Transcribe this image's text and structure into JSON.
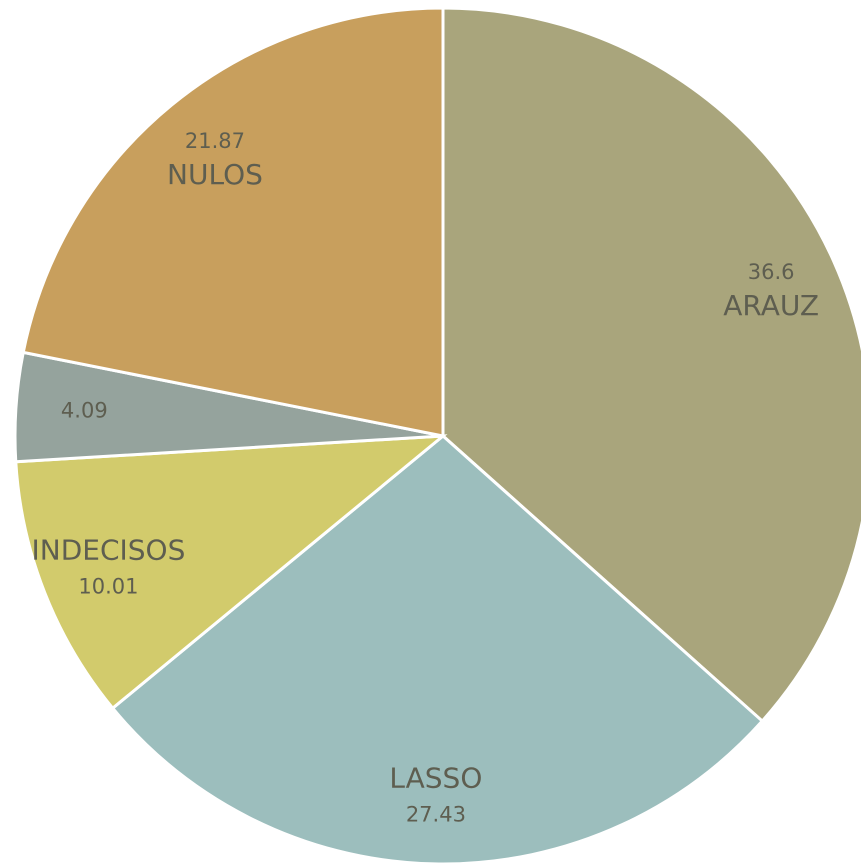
{
  "chart_data": {
    "type": "pie",
    "categories": [
      "ARAUZ",
      "LASSO",
      "INDECISOS",
      null,
      "NULOS"
    ],
    "values": [
      36.6,
      27.43,
      10.01,
      4.09,
      21.87
    ],
    "colors": [
      "#a9a57c",
      "#9cbebd",
      "#d2cb6c",
      "#95a39d",
      "#c89f5d"
    ]
  }
}
